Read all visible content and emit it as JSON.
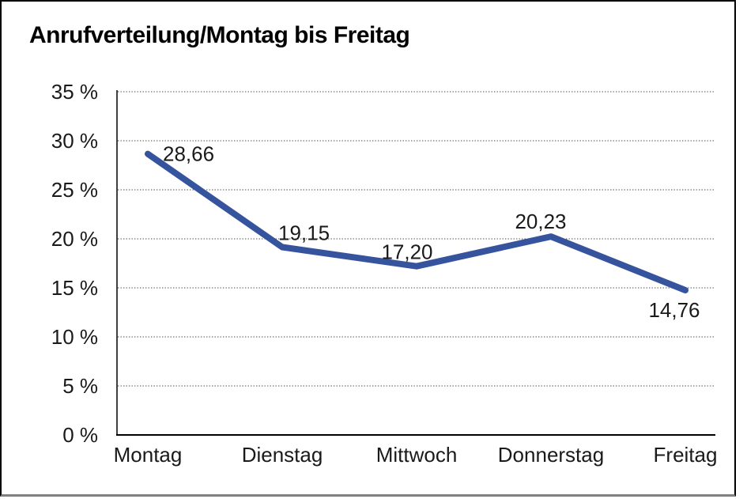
{
  "page": {
    "title": "Anrufverteilung/Montag bis Freitag"
  },
  "chart_data": {
    "type": "line",
    "title": "Anrufverteilung/Montag bis Freitag",
    "categories": [
      "Montag",
      "Dienstag",
      "Mittwoch",
      "Donnerstag",
      "Freitag"
    ],
    "values": [
      28.66,
      19.15,
      17.2,
      20.23,
      14.76
    ],
    "value_labels": [
      "28,66",
      "19,15",
      "17,20",
      "20,23",
      "14,76"
    ],
    "xlabel": "",
    "ylabel": "",
    "ylim": [
      0,
      35
    ],
    "ytick_step": 5,
    "ytick_labels": [
      "0 %",
      "5 %",
      "10 %",
      "15 %",
      "20 %",
      "25 %",
      "30 %",
      "35 %"
    ],
    "grid": "horizontal-dotted",
    "legend": "none",
    "line_color": "#36549E",
    "axis_color": "#000000",
    "grid_color": "#4A4A4A",
    "text_color": "#1A1A1A"
  }
}
